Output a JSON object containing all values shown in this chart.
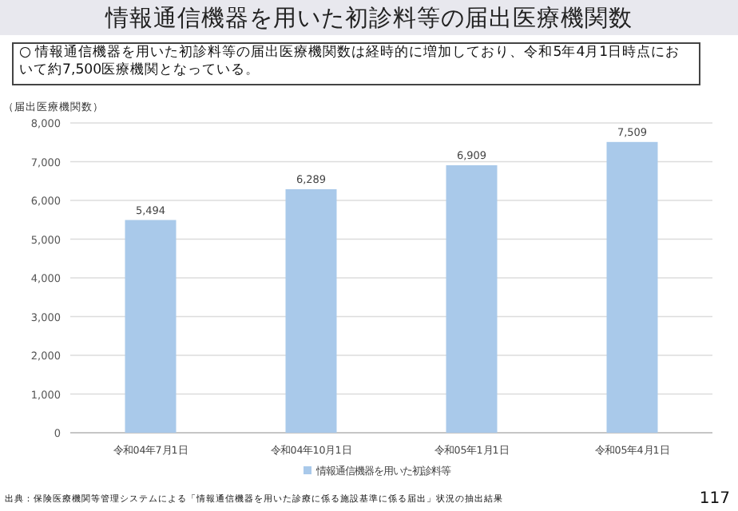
{
  "chart_data": {
    "type": "bar",
    "title": "情報通信機器を用いた初診料等の届出医療機関数",
    "annotations": [
      "○ 情報通信機器を用いた初診料等の届出医療機関数は経時的に増加しており、令和5年4月1日時点において約7,500医療機関となっている。",
      "出典：保険医療機関等管理システムによる「情報通信機器を用いた診療に係る施設基準に係る届出」状況の抽出結果",
      "117"
    ],
    "ylabel": "（届出医療機関数）",
    "categories": [
      "令和04年7月1日",
      "令和04年10月1日",
      "令和05年1月1日",
      "令和05年4月1日"
    ],
    "series": [
      {
        "name": "情報通信機器を用いた初診料等",
        "color": "#a9c9ea",
        "values": [
          5494,
          6289,
          6909,
          7509
        ],
        "value_labels": [
          "5,494",
          "6,289",
          "6,909",
          "7,509"
        ]
      }
    ],
    "ylim": [
      0,
      8000
    ],
    "yticks": [
      0,
      {
        "value": 1000,
        "label": "1,000"
      },
      {
        "value": 2000,
        "label": "2,000"
      },
      {
        "value": 3000,
        "label": "3,000"
      },
      {
        "value": 4000,
        "label": "4,000"
      },
      {
        "value": 5000,
        "label": "5,000"
      },
      {
        "value": 6000,
        "label": "6,000"
      },
      {
        "value": 7000,
        "label": "7,000"
      },
      {
        "value": 8000,
        "label": "8,000"
      }
    ],
    "grid": "y",
    "legend": "bottom"
  }
}
